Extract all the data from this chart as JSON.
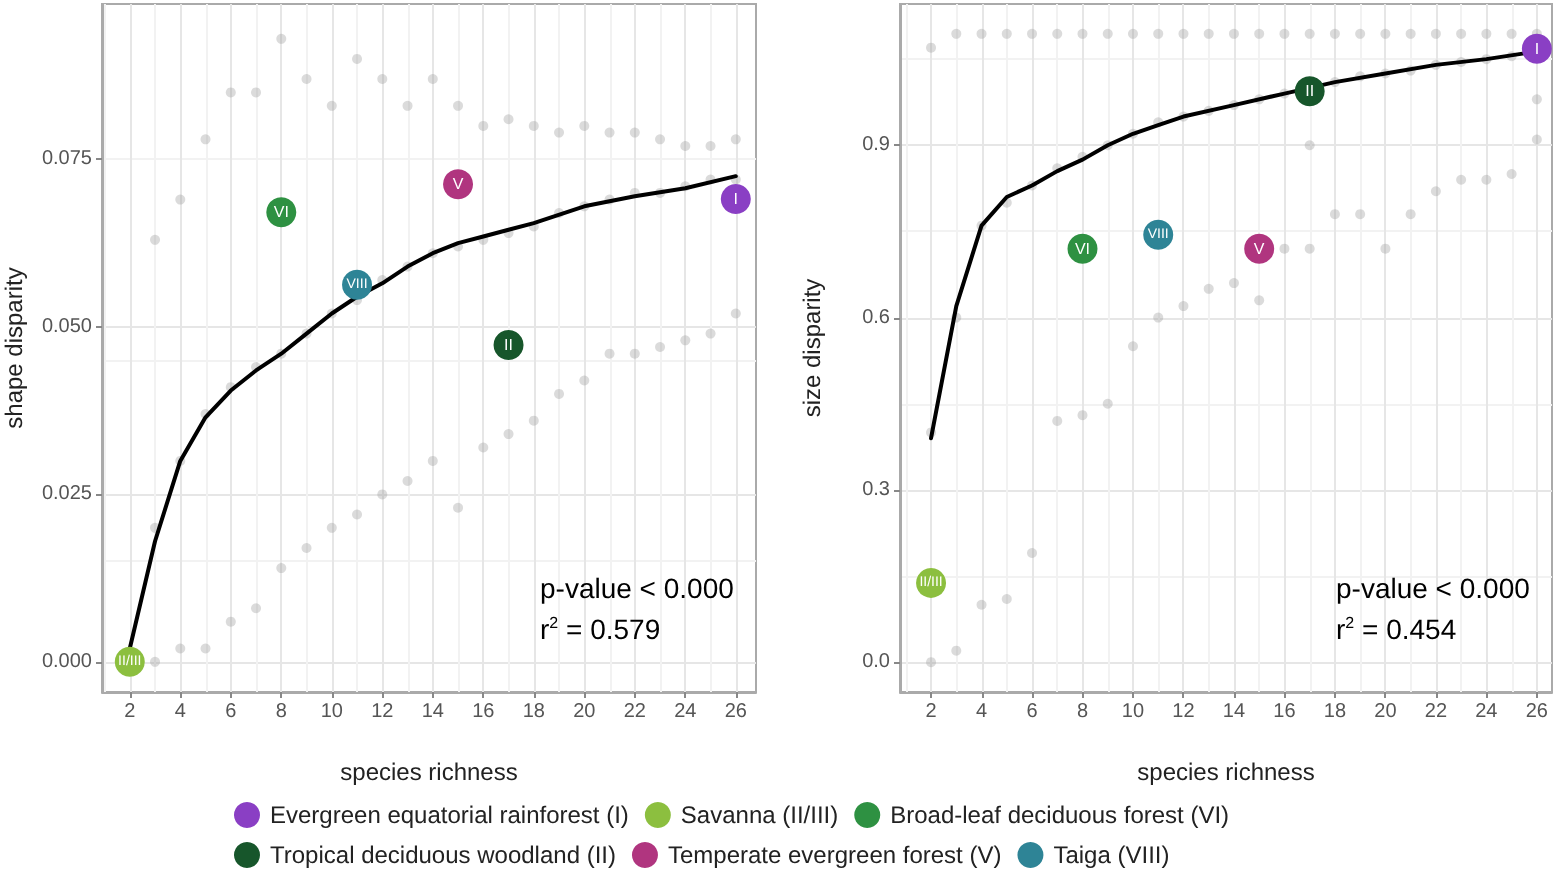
{
  "chart_data": [
    {
      "type": "scatter",
      "xlabel": "species richness",
      "ylabel": "shape disparity",
      "xlim": [
        0.9,
        26.8
      ],
      "xticks": [
        2,
        4,
        6,
        8,
        10,
        12,
        14,
        16,
        18,
        20,
        22,
        24,
        26
      ],
      "ylim": [
        -0.0045,
        0.0982
      ],
      "yticks": [
        {
          "value": 0,
          "label": "0.000"
        },
        {
          "value": 0.025,
          "label": "0.025"
        },
        {
          "value": 0.05,
          "label": "0.050"
        },
        {
          "value": 0.075,
          "label": "0.075"
        }
      ],
      "grid": true,
      "legend": "bottom",
      "marker": "circle",
      "series": [
        {
          "color": "#999999",
          "x": [
            3,
            3,
            3,
            4,
            4,
            4,
            5,
            5,
            5,
            6,
            6,
            6,
            7,
            7,
            7,
            8,
            8,
            8,
            9,
            9,
            9,
            10,
            10,
            10,
            11,
            11,
            11,
            12,
            12,
            12,
            13,
            13,
            13,
            14,
            14,
            14,
            15,
            15,
            15,
            16,
            16,
            16,
            17,
            17,
            17,
            18,
            18,
            18,
            19,
            19,
            19,
            20,
            20,
            20,
            21,
            21,
            21,
            22,
            22,
            22,
            23,
            23,
            23,
            24,
            24,
            24,
            25,
            25,
            25,
            26,
            26,
            26
          ],
          "values": [
            0.0,
            0.02,
            0.063,
            0.002,
            0.03,
            0.069,
            0.002,
            0.037,
            0.078,
            0.006,
            0.041,
            0.085,
            0.008,
            0.044,
            0.085,
            0.014,
            0.046,
            0.093,
            0.017,
            0.049,
            0.087,
            0.02,
            0.052,
            0.083,
            0.022,
            0.054,
            0.09,
            0.025,
            0.057,
            0.087,
            0.027,
            0.059,
            0.083,
            0.03,
            0.061,
            0.087,
            0.023,
            0.062,
            0.083,
            0.032,
            0.063,
            0.08,
            0.034,
            0.064,
            0.081,
            0.036,
            0.065,
            0.08,
            0.04,
            0.067,
            0.079,
            0.042,
            0.068,
            0.08,
            0.046,
            0.069,
            0.079,
            0.046,
            0.07,
            0.079,
            0.047,
            0.07,
            0.078,
            0.048,
            0.071,
            0.077,
            0.049,
            0.072,
            0.077,
            0.052,
            0.072,
            0.078
          ]
        },
        {
          "type": "line",
          "color": "#000000",
          "marker": "none",
          "x": [
            2,
            3,
            4,
            5,
            6,
            7,
            8,
            9,
            10,
            11,
            12,
            13,
            14,
            15,
            16,
            17,
            18,
            20,
            22,
            24,
            26
          ],
          "values": [
            0.002,
            0.018,
            0.03,
            0.0365,
            0.0405,
            0.0435,
            0.046,
            0.049,
            0.052,
            0.0545,
            0.0565,
            0.059,
            0.061,
            0.0625,
            0.0635,
            0.0645,
            0.0655,
            0.068,
            0.0695,
            0.0707,
            0.0725
          ]
        },
        {
          "name": "Evergreen equatorial rainforest (I)",
          "color": "#8a3fc4",
          "x": [
            26
          ],
          "values": [
            0.0691
          ]
        },
        {
          "name": "Savanna (II/III)",
          "color": "#8cbf3f",
          "x": [
            2
          ],
          "values": [
            0.0
          ]
        },
        {
          "name": "Broad-leaf deciduous forest (VI)",
          "color": "#2e9142",
          "x": [
            8
          ],
          "values": [
            0.0671
          ]
        },
        {
          "name": "Tropical deciduous woodland (II)",
          "color": "#17562b",
          "x": [
            17
          ],
          "values": [
            0.0473
          ]
        },
        {
          "name": "Temperate evergreen forest (V)",
          "color": "#b0357f",
          "x": [
            15
          ],
          "values": [
            0.0713
          ]
        },
        {
          "name": "Taiga (VIII)",
          "color": "#2e8496",
          "x": [
            11
          ],
          "values": [
            0.0563
          ]
        }
      ],
      "annotations": [
        "p-value < 0.000",
        "r$^{2}$ = 0.579",
        {
          "text": "I",
          "x": 26,
          "y": 0.0691
        },
        {
          "text": "II/III",
          "x": 2,
          "y": 0.0
        },
        {
          "text": "VI",
          "x": 8,
          "y": 0.0671
        },
        {
          "text": "II",
          "x": 17,
          "y": 0.0473
        },
        {
          "text": "V",
          "x": 15,
          "y": 0.0713
        },
        {
          "text": "VIII",
          "x": 11,
          "y": 0.0563
        }
      ]
    },
    {
      "type": "scatter",
      "xlabel": "species richness",
      "ylabel": "size disparity",
      "xlim": [
        0.77,
        26.6
      ],
      "xticks": [
        2,
        4,
        6,
        8,
        10,
        12,
        14,
        16,
        18,
        20,
        22,
        24,
        26
      ],
      "ylim": [
        -0.052,
        1.146
      ],
      "yticks": [
        {
          "value": 0,
          "label": "0.0"
        },
        {
          "value": 0.3,
          "label": "0.3"
        },
        {
          "value": 0.6,
          "label": "0.6"
        },
        {
          "value": 0.9,
          "label": "0.9"
        }
      ],
      "grid": true,
      "marker": "circle",
      "series": [
        {
          "color": "#999999",
          "x": [
            2,
            2,
            2,
            3,
            3,
            3,
            4,
            4,
            4,
            5,
            5,
            5,
            6,
            6,
            6,
            7,
            7,
            7,
            8,
            8,
            8,
            9,
            9,
            9,
            10,
            10,
            10,
            11,
            11,
            11,
            12,
            12,
            12,
            13,
            13,
            13,
            14,
            14,
            14,
            15,
            15,
            15,
            16,
            16,
            16,
            17,
            17,
            17,
            18,
            18,
            18,
            19,
            19,
            19,
            20,
            20,
            20,
            21,
            21,
            21,
            22,
            22,
            22,
            23,
            23,
            23,
            24,
            24,
            24,
            25,
            25,
            25,
            26,
            26,
            26
          ],
          "values": [
            0.0,
            0.4,
            1.07,
            0.02,
            0.6,
            1.094,
            0.1,
            0.76,
            1.094,
            0.11,
            0.8,
            1.094,
            0.19,
            0.83,
            1.094,
            0.42,
            0.86,
            1.094,
            0.43,
            0.88,
            1.094,
            0.45,
            0.9,
            1.094,
            0.55,
            0.92,
            1.094,
            0.6,
            0.94,
            1.094,
            0.62,
            0.95,
            1.094,
            0.65,
            0.96,
            1.094,
            0.66,
            0.97,
            1.094,
            0.63,
            0.98,
            1.094,
            0.72,
            0.99,
            1.094,
            0.72,
            0.9,
            1.094,
            0.78,
            1.01,
            1.094,
            0.78,
            1.02,
            1.094,
            0.72,
            1.025,
            1.094,
            0.78,
            1.03,
            1.094,
            0.82,
            1.04,
            1.094,
            0.84,
            1.045,
            1.094,
            0.84,
            1.05,
            1.094,
            0.85,
            1.055,
            1.094,
            0.91,
            0.98,
            1.094
          ]
        },
        {
          "type": "line",
          "color": "#000000",
          "marker": "none",
          "x": [
            2,
            3,
            4,
            5,
            6,
            7,
            8,
            9,
            10,
            11,
            12,
            14,
            16,
            17,
            18,
            20,
            22,
            24,
            25.5
          ],
          "values": [
            0.39,
            0.62,
            0.76,
            0.81,
            0.83,
            0.855,
            0.875,
            0.9,
            0.92,
            0.935,
            0.95,
            0.97,
            0.99,
            1.0,
            1.01,
            1.025,
            1.04,
            1.05,
            1.06
          ]
        },
        {
          "color": "#8a3fc4",
          "x": [
            26
          ],
          "values": [
            1.068
          ]
        },
        {
          "color": "#8cbf3f",
          "x": [
            2
          ],
          "values": [
            0.138
          ]
        },
        {
          "color": "#2e9142",
          "x": [
            8
          ],
          "values": [
            0.72
          ]
        },
        {
          "color": "#17562b",
          "x": [
            17
          ],
          "values": [
            0.994
          ]
        },
        {
          "color": "#b0357f",
          "x": [
            15
          ],
          "values": [
            0.72
          ]
        },
        {
          "color": "#2e8496",
          "x": [
            11
          ],
          "values": [
            0.744
          ]
        }
      ],
      "annotations": [
        "p-value < 0.000",
        "r$^{2}$ = 0.454",
        {
          "text": "I",
          "x": 26,
          "y": 1.068
        },
        {
          "text": "II/III",
          "x": 2,
          "y": 0.138
        },
        {
          "text": "VI",
          "x": 8,
          "y": 0.72
        },
        {
          "text": "II",
          "x": 17,
          "y": 0.994
        },
        {
          "text": "V",
          "x": 15,
          "y": 0.72
        },
        {
          "text": "VIII",
          "x": 11,
          "y": 0.744
        }
      ]
    }
  ]
}
